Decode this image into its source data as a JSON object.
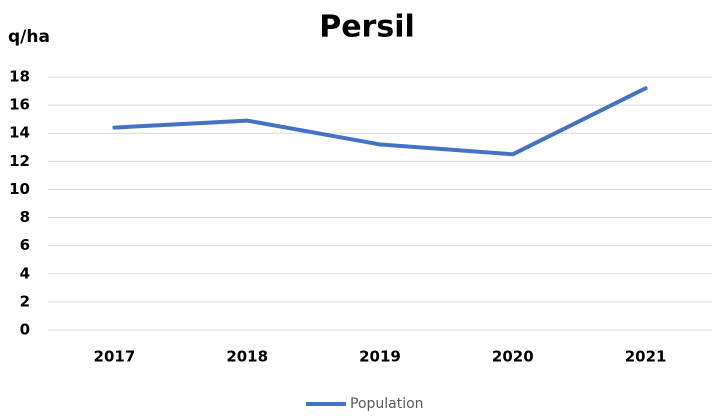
{
  "chart_data": {
    "type": "line",
    "title": "Persil",
    "y_label": "q/ha",
    "categories": [
      "2017",
      "2018",
      "2019",
      "2020",
      "2021"
    ],
    "series": [
      {
        "name": "Population",
        "color": "#4472c4",
        "values": [
          14.4,
          14.9,
          13.2,
          12.5,
          17.2
        ]
      }
    ],
    "ylim": [
      0,
      18
    ],
    "yticks": [
      0,
      2,
      4,
      6,
      8,
      10,
      12,
      14,
      16,
      18
    ],
    "grid": true,
    "legend": "bottom"
  }
}
